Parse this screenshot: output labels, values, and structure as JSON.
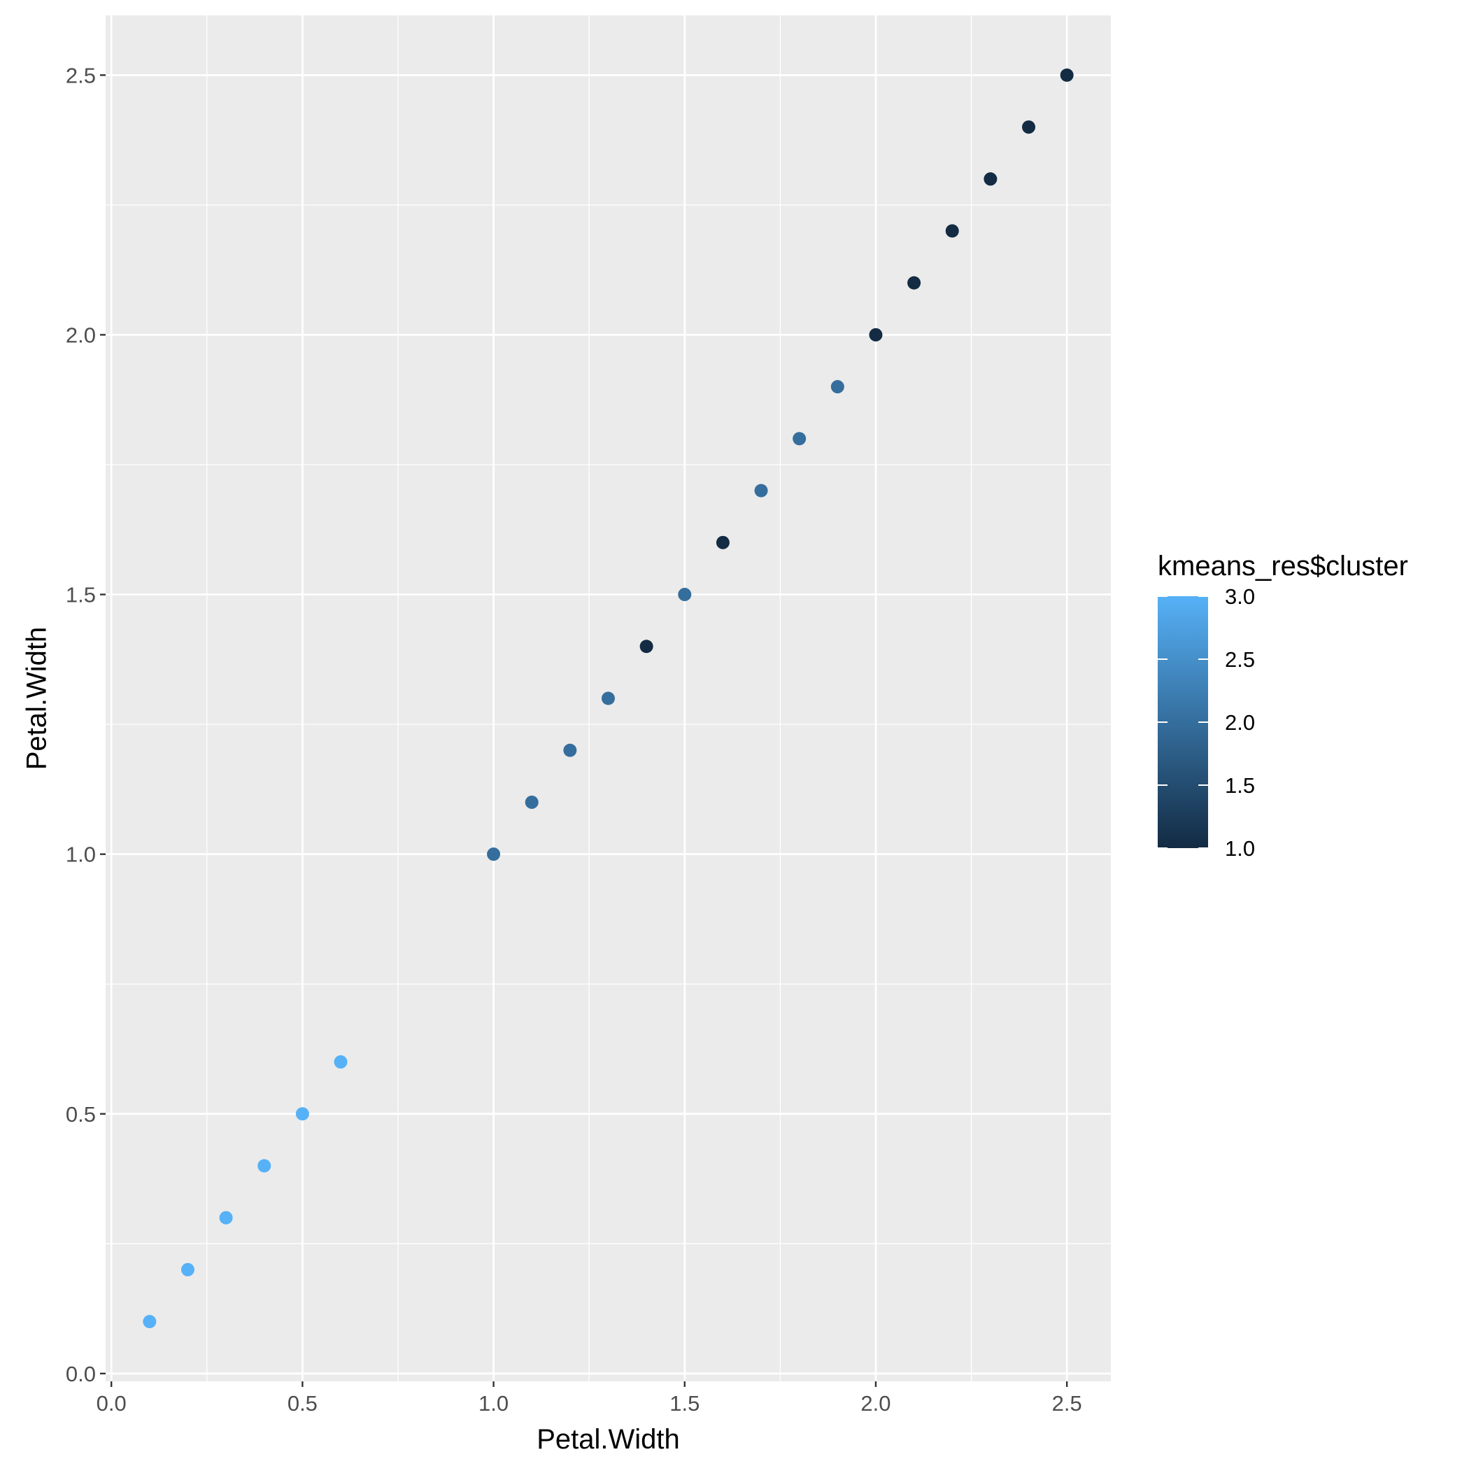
{
  "chart_data": {
    "type": "scatter",
    "title": "",
    "xlabel": "Petal.Width",
    "ylabel": "Petal.Width",
    "xlim": [
      -0.015,
      2.615
    ],
    "ylim": [
      -0.015,
      2.615
    ],
    "x_ticks": [
      0.0,
      0.5,
      1.0,
      1.5,
      2.0,
      2.5
    ],
    "x_tick_labels": [
      "0.0",
      "0.5",
      "1.0",
      "1.5",
      "2.0",
      "2.5"
    ],
    "y_ticks": [
      0.0,
      0.5,
      1.0,
      1.5,
      2.0,
      2.5
    ],
    "y_tick_labels": [
      "0.0",
      "0.5",
      "1.0",
      "1.5",
      "2.0",
      "2.5"
    ],
    "grid": true,
    "panel_background": "#EBEBEB",
    "grid_color": "#FFFFFF",
    "legend": {
      "title": "kmeans_res$cluster",
      "placement": "right",
      "ticks": [
        1.0,
        1.5,
        2.0,
        2.5,
        3.0
      ],
      "tick_labels": [
        "1.0",
        "1.5",
        "2.0",
        "2.5",
        "3.0"
      ],
      "range": [
        1.0,
        3.0
      ],
      "color_low": "#132B43",
      "color_high": "#56B1F7"
    },
    "points": [
      {
        "x": 0.1,
        "y": 0.1,
        "cluster": 3
      },
      {
        "x": 0.2,
        "y": 0.2,
        "cluster": 3
      },
      {
        "x": 0.3,
        "y": 0.3,
        "cluster": 3
      },
      {
        "x": 0.4,
        "y": 0.4,
        "cluster": 3
      },
      {
        "x": 0.5,
        "y": 0.5,
        "cluster": 3
      },
      {
        "x": 0.6,
        "y": 0.6,
        "cluster": 3
      },
      {
        "x": 1.0,
        "y": 1.0,
        "cluster": 2
      },
      {
        "x": 1.1,
        "y": 1.1,
        "cluster": 2
      },
      {
        "x": 1.2,
        "y": 1.2,
        "cluster": 2
      },
      {
        "x": 1.3,
        "y": 1.3,
        "cluster": 2
      },
      {
        "x": 1.4,
        "y": 1.4,
        "cluster": 1
      },
      {
        "x": 1.5,
        "y": 1.5,
        "cluster": 2
      },
      {
        "x": 1.6,
        "y": 1.6,
        "cluster": 1
      },
      {
        "x": 1.7,
        "y": 1.7,
        "cluster": 2
      },
      {
        "x": 1.8,
        "y": 1.8,
        "cluster": 2
      },
      {
        "x": 1.9,
        "y": 1.9,
        "cluster": 2
      },
      {
        "x": 2.0,
        "y": 2.0,
        "cluster": 1
      },
      {
        "x": 2.1,
        "y": 2.1,
        "cluster": 1
      },
      {
        "x": 2.2,
        "y": 2.2,
        "cluster": 1
      },
      {
        "x": 2.3,
        "y": 2.3,
        "cluster": 1
      },
      {
        "x": 2.4,
        "y": 2.4,
        "cluster": 1
      },
      {
        "x": 2.5,
        "y": 2.5,
        "cluster": 1
      }
    ]
  }
}
